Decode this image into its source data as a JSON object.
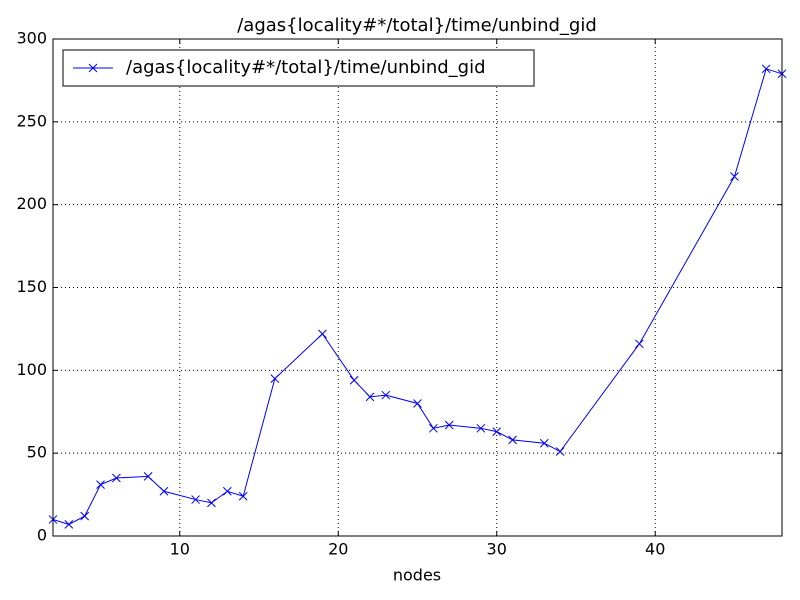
{
  "chart_data": {
    "type": "line",
    "title": "/agas{locality#*/total}/time/unbind_gid",
    "x_label": "nodes",
    "x": [
      2,
      3,
      4,
      5,
      6,
      8,
      9,
      11,
      12,
      13,
      14,
      16,
      19,
      21,
      22,
      23,
      25,
      26,
      27,
      29,
      30,
      31,
      33,
      34,
      39,
      45,
      47,
      48
    ],
    "series": [
      {
        "name": "/agas{locality#*/total}/time/unbind_gid",
        "color": "#0000ff",
        "values": [
          10,
          7,
          12,
          31,
          35,
          36,
          27,
          22,
          20,
          27,
          24,
          95,
          122,
          94,
          84,
          85,
          80,
          65,
          67,
          65,
          63,
          58,
          56,
          51,
          116,
          217,
          282,
          279
        ]
      }
    ],
    "xlim": [
      2,
      48
    ],
    "xticks": [
      10,
      20,
      30,
      40
    ],
    "ylim": [
      0,
      300
    ],
    "yticks": [
      0,
      50,
      100,
      150,
      200,
      250,
      300
    ],
    "grid": true,
    "legend": "upper left",
    "marker": "x"
  }
}
